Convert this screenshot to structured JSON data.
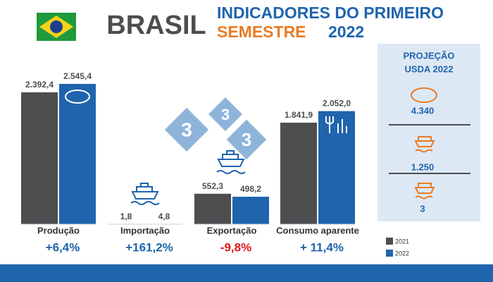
{
  "chart_data": {
    "type": "bar",
    "title": "BRASIL",
    "subtitle": [
      "INDICADORES DO PRIMEIRO",
      "SEMESTRE",
      "2022"
    ],
    "categories": [
      "Produção",
      "Importação",
      "Exportação",
      "Consumo aparente"
    ],
    "series": [
      {
        "name": "2021",
        "color": "#4d4e50",
        "values": [
          2392.4,
          1.8,
          552.3,
          1841.9
        ],
        "value_labels": [
          "2.392,4",
          "1,8",
          "552,3",
          "1.841,9"
        ]
      },
      {
        "name": "2022",
        "color": "#1f64ad",
        "values": [
          2545.4,
          4.8,
          498.2,
          2052.0
        ],
        "value_labels": [
          "2.545,4",
          "4,8",
          "498,2",
          "2.052,0"
        ]
      }
    ],
    "changes": [
      "+6,4%",
      "+161,2%",
      "-9,8%",
      "+ 11,4%"
    ],
    "change_colors": [
      "#1f64ad",
      "#1f64ad",
      "#e0161b",
      "#1f64ad"
    ],
    "badge_numbers": [
      "3",
      "3",
      "3"
    ],
    "projection": {
      "title": [
        "PROJEÇÃO",
        "USDA 2022"
      ],
      "items": [
        "4.340",
        "1.250",
        "3"
      ]
    }
  }
}
